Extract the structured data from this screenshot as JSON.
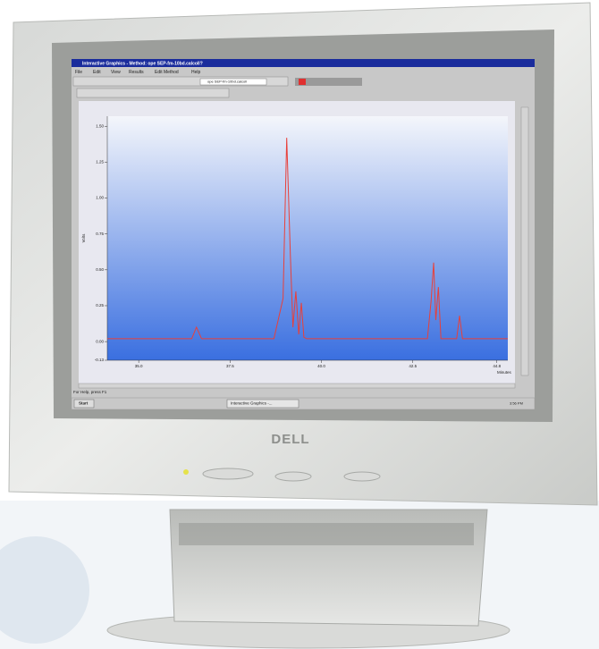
{
  "window": {
    "title": "Interactive Graphics - Method: ope SEP-fm-10bd.calcoll?",
    "menu": [
      "File",
      "Edit",
      "View",
      "Results",
      "Edit Method",
      "Help"
    ],
    "file_box": "ope SEP-fm-10bd.calcoll"
  },
  "chart_data": {
    "type": "line",
    "ylabel": "Volts",
    "xlabel": "Minutes",
    "color": "#e8403a",
    "x": [
      34.14,
      36.45,
      36.58,
      36.72,
      38.7,
      38.95,
      39.05,
      39.15,
      39.22,
      39.3,
      39.38,
      39.45,
      39.52,
      39.6,
      39.7,
      42.9,
      43.0,
      43.07,
      43.13,
      43.2,
      43.27,
      43.7,
      43.78,
      43.86,
      45.1
    ],
    "values": [
      0.02,
      0.02,
      0.1,
      0.02,
      0.02,
      0.3,
      1.42,
      0.6,
      0.1,
      0.35,
      0.05,
      0.27,
      0.03,
      0.02,
      0.02,
      0.02,
      0.28,
      0.55,
      0.15,
      0.38,
      0.02,
      0.02,
      0.18,
      0.02,
      0.02
    ],
    "xlim": [
      34.14,
      45.1
    ],
    "ylim": [
      -0.13,
      1.57
    ],
    "xticks": [
      {
        "value": 35,
        "label": "35.0"
      },
      37.5,
      {
        "value": 40,
        "label": "40.0"
      },
      42.5,
      44.8
    ],
    "yticks": [
      {
        "value": 1.5,
        "label": "1.50"
      },
      1.25,
      {
        "value": 1,
        "label": "1.00"
      },
      0.75,
      {
        "value": 0.5,
        "label": "0.50"
      },
      0.25,
      {
        "value": 0,
        "label": "0.00"
      },
      -0.13
    ]
  },
  "status_bar": "For Help, press F1",
  "taskbar": {
    "start": "Start",
    "task": "Interactive Graphics -...",
    "clock": "3:56 PM"
  },
  "brand": "DELL"
}
